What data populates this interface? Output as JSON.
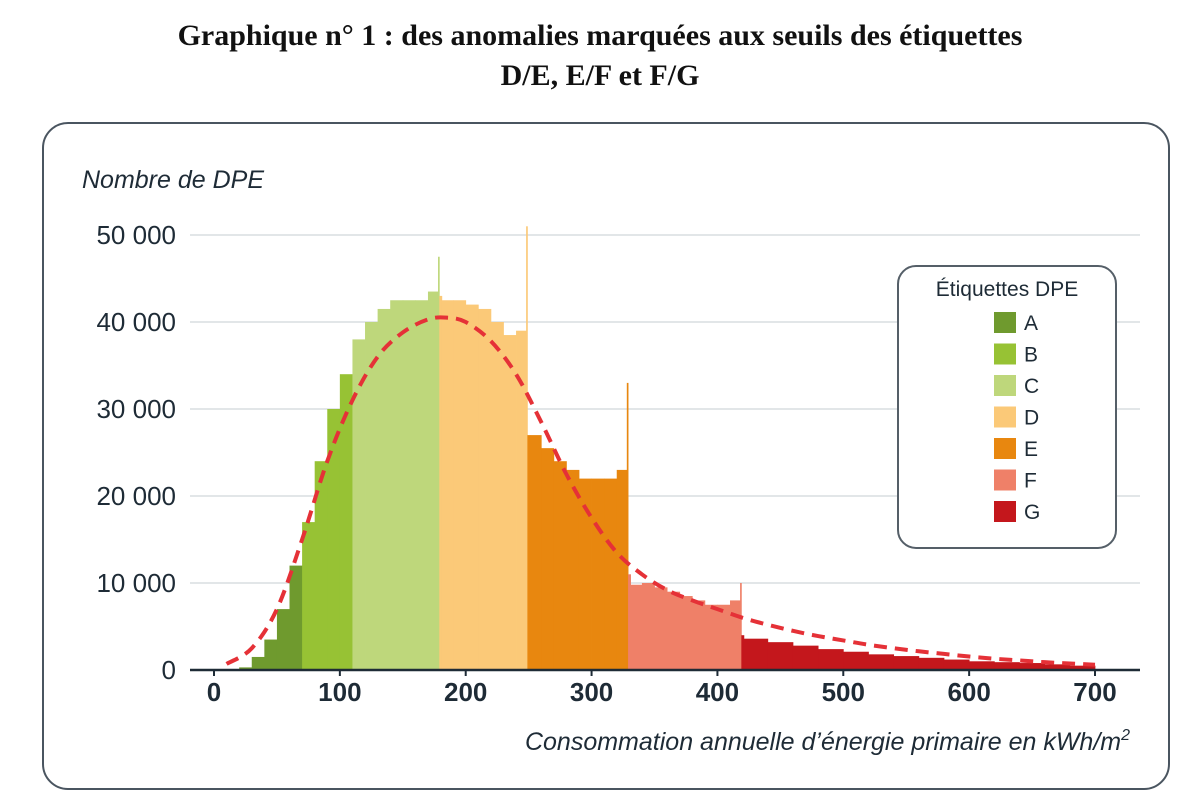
{
  "title_line1": "Graphique n° 1 : des anomalies marquées aux seuils des étiquettes",
  "title_line2": "D/E, E/F et F/G",
  "chart_data": {
    "type": "bar",
    "ylabel": "Nombre de DPE",
    "xlabel": "Consommation annuelle d’énergie primaire en kWh/m",
    "xlabel_superscript": "2",
    "xlim": [
      0,
      700
    ],
    "ylim": [
      0,
      50000
    ],
    "xticks": [
      "0",
      "100",
      "200",
      "300",
      "400",
      "500",
      "600",
      "700"
    ],
    "yticks": [
      "0",
      "10 000",
      "20 000",
      "30 000",
      "40 000",
      "50 000"
    ],
    "grid": "horizontal",
    "legend": {
      "title": "Étiquettes DPE",
      "placement": "right",
      "items": [
        {
          "label": "A",
          "color": "#6f9a2e",
          "from": 0,
          "to": 70
        },
        {
          "label": "B",
          "color": "#97c234",
          "from": 70,
          "to": 110
        },
        {
          "label": "C",
          "color": "#bed77b",
          "from": 110,
          "to": 180
        },
        {
          "label": "D",
          "color": "#fbc978",
          "from": 180,
          "to": 250
        },
        {
          "label": "E",
          "color": "#e8870f",
          "from": 250,
          "to": 330
        },
        {
          "label": "F",
          "color": "#ef8068",
          "from": 330,
          "to": 420
        },
        {
          "label": "G",
          "color": "#c4171c",
          "from": 420,
          "to": 700
        }
      ]
    },
    "histogram": {
      "x": [
        10,
        20,
        30,
        40,
        50,
        60,
        70,
        80,
        90,
        100,
        110,
        120,
        130,
        140,
        150,
        160,
        170,
        178,
        179,
        181,
        190,
        200,
        210,
        220,
        230,
        240,
        248,
        249,
        251,
        260,
        270,
        280,
        290,
        300,
        310,
        320,
        328,
        329,
        331,
        340,
        350,
        360,
        370,
        380,
        390,
        400,
        410,
        418,
        419,
        421,
        440,
        460,
        480,
        500,
        520,
        540,
        560,
        580,
        600,
        620,
        640,
        660,
        680,
        700
      ],
      "y": [
        0,
        0,
        300,
        1500,
        3500,
        7000,
        12000,
        17000,
        24000,
        30000,
        34000,
        38000,
        40000,
        41500,
        42500,
        42500,
        42500,
        43500,
        47500,
        43000,
        42500,
        42500,
        42000,
        41500,
        40000,
        38500,
        39000,
        51000,
        27000,
        27000,
        25500,
        24000,
        23000,
        22000,
        22000,
        22000,
        23000,
        33000,
        11000,
        9800,
        10000,
        9500,
        9000,
        8500,
        8000,
        7500,
        7500,
        8000,
        10000,
        4000,
        3600,
        3200,
        2800,
        2400,
        2100,
        1800,
        1600,
        1400,
        1200,
        1000,
        900,
        800,
        650,
        500
      ]
    },
    "fit_curve": {
      "style": "dashed",
      "color": "#e53137",
      "x": [
        10,
        30,
        50,
        70,
        90,
        110,
        130,
        150,
        170,
        185,
        200,
        220,
        240,
        260,
        280,
        300,
        320,
        340,
        360,
        380,
        400,
        420,
        440,
        460,
        480,
        500,
        520,
        540,
        560,
        580,
        600,
        620,
        640,
        660,
        680,
        700
      ],
      "y": [
        700,
        2500,
        7000,
        15000,
        24000,
        31000,
        36000,
        38800,
        40300,
        40500,
        40000,
        37800,
        34000,
        28500,
        22500,
        17500,
        13500,
        11000,
        9200,
        8000,
        7000,
        6000,
        5200,
        4500,
        3900,
        3400,
        2900,
        2500,
        2150,
        1850,
        1550,
        1300,
        1100,
        900,
        750,
        600
      ]
    }
  }
}
